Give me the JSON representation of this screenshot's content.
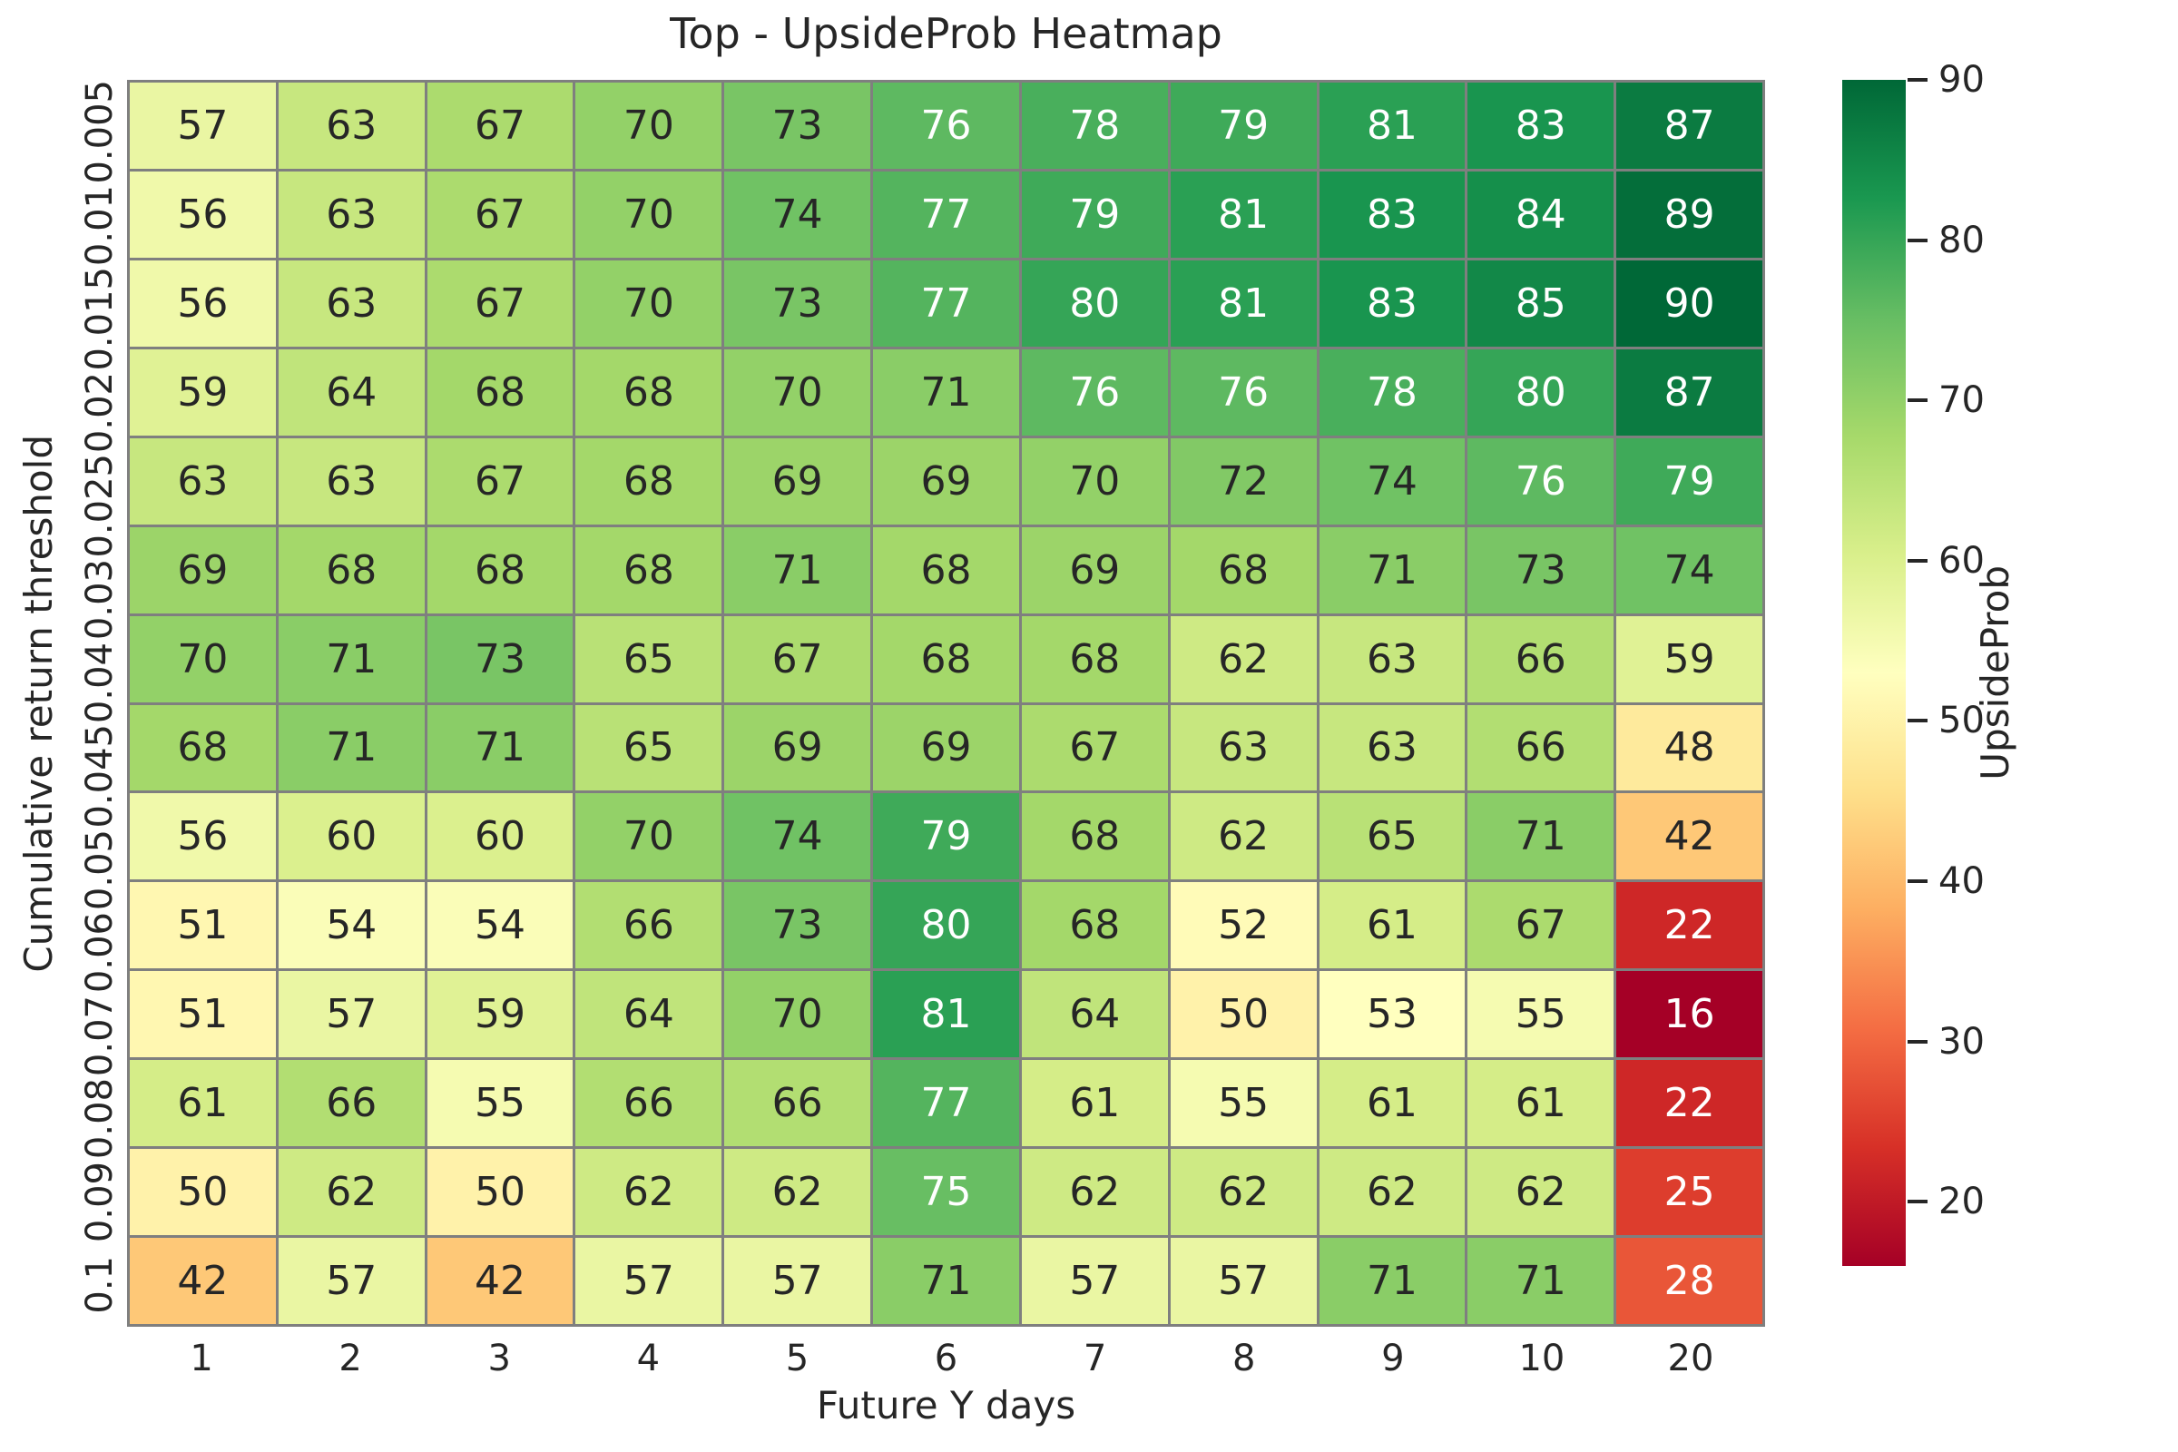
{
  "chart_data": {
    "type": "heatmap",
    "title": "Top - UpsideProb Heatmap",
    "xlabel": "Future Y days",
    "ylabel": "Cumulative return threshold",
    "x_categories": [
      "1",
      "2",
      "3",
      "4",
      "5",
      "6",
      "7",
      "8",
      "9",
      "10",
      "20"
    ],
    "y_categories": [
      "0.005",
      "0.01",
      "0.015",
      "0.02",
      "0.025",
      "0.03",
      "0.04",
      "0.045",
      "0.05",
      "0.06",
      "0.07",
      "0.08",
      "0.09",
      "0.1"
    ],
    "values": [
      [
        57,
        63,
        67,
        70,
        73,
        76,
        78,
        79,
        81,
        83,
        87
      ],
      [
        56,
        63,
        67,
        70,
        74,
        77,
        79,
        81,
        83,
        84,
        89
      ],
      [
        56,
        63,
        67,
        70,
        73,
        77,
        80,
        81,
        83,
        85,
        90
      ],
      [
        59,
        64,
        68,
        68,
        70,
        71,
        76,
        76,
        78,
        80,
        87
      ],
      [
        63,
        63,
        67,
        68,
        69,
        69,
        70,
        72,
        74,
        76,
        79
      ],
      [
        69,
        68,
        68,
        68,
        71,
        68,
        69,
        68,
        71,
        73,
        74
      ],
      [
        70,
        71,
        73,
        65,
        67,
        68,
        68,
        62,
        63,
        66,
        59
      ],
      [
        68,
        71,
        71,
        65,
        69,
        69,
        67,
        63,
        63,
        66,
        48
      ],
      [
        56,
        60,
        60,
        70,
        74,
        79,
        68,
        62,
        65,
        71,
        42
      ],
      [
        51,
        54,
        54,
        66,
        73,
        80,
        68,
        52,
        61,
        67,
        22
      ],
      [
        51,
        57,
        59,
        64,
        70,
        81,
        64,
        50,
        53,
        55,
        16
      ],
      [
        61,
        66,
        55,
        66,
        66,
        77,
        61,
        55,
        61,
        61,
        22
      ],
      [
        50,
        62,
        50,
        62,
        62,
        75,
        62,
        62,
        62,
        62,
        25
      ],
      [
        42,
        57,
        42,
        57,
        57,
        71,
        57,
        57,
        71,
        71,
        28
      ]
    ],
    "colorbar": {
      "label": "UpsideProb",
      "ticks": [
        20,
        30,
        40,
        50,
        60,
        70,
        80,
        90
      ],
      "vmin": 16,
      "vmax": 90
    },
    "colormap": {
      "name": "RdYlGn",
      "stops": [
        "#a50026",
        "#d73027",
        "#f46d43",
        "#fdae61",
        "#fee08b",
        "#ffffbf",
        "#d9ef8b",
        "#a6d96a",
        "#66bd63",
        "#1a9850",
        "#006837"
      ]
    },
    "grid_line_color": "#7f7f7f",
    "annot_dark_color": "#262626",
    "annot_light_color": "#ffffff",
    "layout": {
      "grid_on": false,
      "legend_position": "right-colorbar"
    }
  }
}
